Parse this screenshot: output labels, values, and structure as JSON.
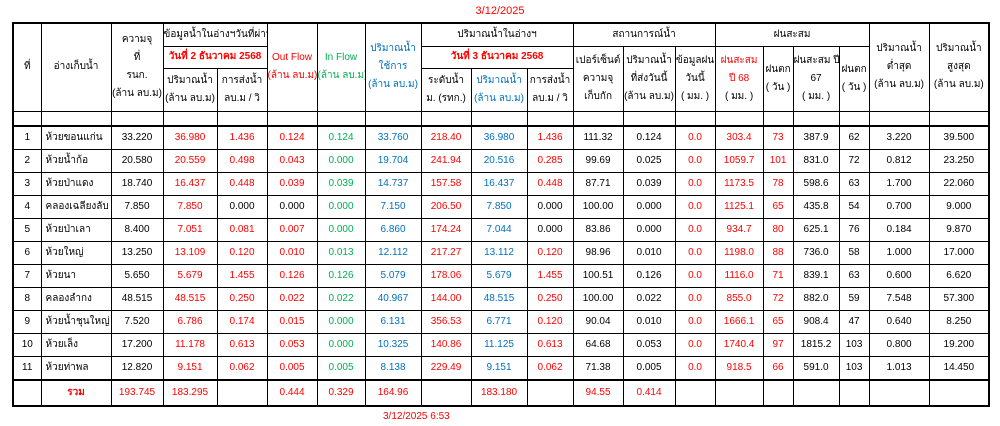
{
  "title_date": "3/12/2025",
  "footer_timestamp": "3/12/2025 6:53",
  "colors": {
    "red": "#FF0000",
    "green": "#00B050",
    "blue": "#0070C0",
    "black": "#000000"
  },
  "header": {
    "no": "ที่",
    "reservoir": "อ่างเก็บน้ำ",
    "capacity_lines": [
      "ความจุ",
      "ที่",
      "รนก.",
      "(ล้าน ลบ.ม)"
    ],
    "prev_day_group": "ข้อมูลน้ำในอ่างฯวันที่ผ่านมา",
    "prev_day_date": "วันที่ 2 ธันวาคม 2568",
    "volume_lines": [
      "ปริมาณน้ำ",
      "(ล้าน ลบ.ม)"
    ],
    "send_lines": [
      "การส่งน้ำ",
      "ลบ.ม / วิ"
    ],
    "out_flow_lines": [
      "Out Flow",
      "(ล้าน ลบ.ม)"
    ],
    "in_flow_lines": [
      "In Flow",
      "(ล้าน ลบ.ม)"
    ],
    "usable_lines": [
      "ปริมาณน้ำ",
      "ใช้การ",
      "(ล้าน ลบ.ม)"
    ],
    "today_group": "ปริมาณน้ำในอ่างฯ",
    "today_date": "วันที่ 3 ธันวาคม 2568",
    "level_lines": [
      "ระดับน้ำ",
      "ม. (รทก.)"
    ],
    "situation_group": "สถานการณ์น้ำ",
    "percent_lines": [
      "เปอร์เซ็นต์",
      "ความจุ",
      "เก็บกัก"
    ],
    "sent_today_lines": [
      "ปริมาณน้ำ",
      "ที่ส่งวันนี้",
      "(ล้าน ลบ.ม)"
    ],
    "rain_today_lines": [
      "ข้อมูลฝน",
      "วันนี้",
      "( มม. )"
    ],
    "rain_group": "ฝนสะสม",
    "rain68_lines": [
      "ฝนสะสม",
      "ปี 68"
    ],
    "rain68_unit": "( มม. )",
    "raindays_lines": [
      "ฝนตก",
      "( วัน )"
    ],
    "rain67_lines": [
      "ฝนสะสม ปี",
      "67",
      "( มม. )"
    ],
    "min_lines": [
      "ปริมาณน้ำ",
      "ต่ำสุด",
      "(ล้าน ลบ.ม)"
    ],
    "max_lines": [
      "ปริมาณน้ำ",
      "สูงสุด",
      "(ล้าน ลบ.ม)"
    ]
  },
  "table": {
    "columns": [
      {
        "id": "capacity",
        "color": "black"
      },
      {
        "id": "d2_volume",
        "color": "red"
      },
      {
        "id": "d2_send",
        "color": "red",
        "zero_black": true
      },
      {
        "id": "out_flow",
        "color": "red",
        "zero_black": true
      },
      {
        "id": "in_flow",
        "color": "green"
      },
      {
        "id": "usable",
        "color": "blue"
      },
      {
        "id": "level",
        "color": "red"
      },
      {
        "id": "d3_volume",
        "color": "blue"
      },
      {
        "id": "d3_send",
        "color": "red",
        "zero_black": true
      },
      {
        "id": "percent",
        "color": "black"
      },
      {
        "id": "sent_today",
        "color": "black"
      },
      {
        "id": "rain_today",
        "color": "red"
      },
      {
        "id": "rain68",
        "color": "red"
      },
      {
        "id": "raindays68",
        "color": "red"
      },
      {
        "id": "rain67",
        "color": "black"
      },
      {
        "id": "raindays67",
        "color": "black"
      },
      {
        "id": "min",
        "color": "black"
      },
      {
        "id": "max",
        "color": "black"
      }
    ],
    "rows": [
      {
        "no": "1",
        "name": "ห้วยขอนแก่น",
        "values": [
          "33.220",
          "36.980",
          "1.436",
          "0.124",
          "0.124",
          "33.760",
          "218.40",
          "36.980",
          "1.436",
          "111.32",
          "0.124",
          "0.0",
          "303.4",
          "73",
          "387.9",
          "62",
          "3.220",
          "39.500"
        ]
      },
      {
        "no": "2",
        "name": "ห้วยน้ำก้อ",
        "values": [
          "20.580",
          "20.559",
          "0.498",
          "0.043",
          "0.000",
          "19.704",
          "241.94",
          "20.516",
          "0.285",
          "99.69",
          "0.025",
          "0.0",
          "1059.7",
          "101",
          "831.0",
          "72",
          "0.812",
          "23.250"
        ]
      },
      {
        "no": "3",
        "name": "ห้วยป่าแดง",
        "values": [
          "18.740",
          "16.437",
          "0.448",
          "0.039",
          "0.039",
          "14.737",
          "157.58",
          "16.437",
          "0.448",
          "87.71",
          "0.039",
          "0.0",
          "1173.5",
          "78",
          "598.6",
          "63",
          "1.700",
          "22.060"
        ]
      },
      {
        "no": "4",
        "name": "คลองเฉลียงลับ",
        "values": [
          "7.850",
          "7.850",
          "0.000",
          "0.000",
          "0.000",
          "7.150",
          "206.50",
          "7.850",
          "0.000",
          "100.00",
          "0.000",
          "0.0",
          "1125.1",
          "65",
          "435.8",
          "54",
          "0.700",
          "9.000"
        ]
      },
      {
        "no": "5",
        "name": "ห้วยป่าเลา",
        "values": [
          "8.400",
          "7.051",
          "0.081",
          "0.007",
          "0.000",
          "6.860",
          "174.24",
          "7.044",
          "0.000",
          "83.86",
          "0.000",
          "0.0",
          "934.7",
          "80",
          "625.1",
          "76",
          "0.184",
          "9.870"
        ]
      },
      {
        "no": "6",
        "name": "ห้วยใหญ่",
        "values": [
          "13.250",
          "13.109",
          "0.120",
          "0.010",
          "0.013",
          "12.112",
          "217.27",
          "13.112",
          "0.120",
          "98.96",
          "0.010",
          "0.0",
          "1198.0",
          "88",
          "736.0",
          "58",
          "1.000",
          "17.000"
        ]
      },
      {
        "no": "7",
        "name": "ห้วยนา",
        "values": [
          "5.650",
          "5.679",
          "1.455",
          "0.126",
          "0.126",
          "5.079",
          "178.06",
          "5.679",
          "1.455",
          "100.51",
          "0.126",
          "0.0",
          "1116.0",
          "71",
          "839.1",
          "63",
          "0.600",
          "6.620"
        ]
      },
      {
        "no": "8",
        "name": "คลองลำกง",
        "values": [
          "48.515",
          "48.515",
          "0.250",
          "0.022",
          "0.022",
          "40.967",
          "144.00",
          "48.515",
          "0.250",
          "100.00",
          "0.022",
          "0.0",
          "855.0",
          "72",
          "882.0",
          "59",
          "7.548",
          "57.300"
        ]
      },
      {
        "no": "9",
        "name": "ห้วยน้ำชุนใหญ่",
        "values": [
          "7.520",
          "6.786",
          "0.174",
          "0.015",
          "0.000",
          "6.131",
          "356.53",
          "6.771",
          "0.120",
          "90.04",
          "0.010",
          "0.0",
          "1666.1",
          "65",
          "908.4",
          "47",
          "0.640",
          "8.250"
        ]
      },
      {
        "no": "10",
        "name": "ห้วยเล็ง",
        "values": [
          "17.200",
          "11.178",
          "0.613",
          "0.053",
          "0.000",
          "10.325",
          "140.86",
          "11.125",
          "0.613",
          "64.68",
          "0.053",
          "0.0",
          "1740.4",
          "97",
          "1815.2",
          "103",
          "0.800",
          "19.200"
        ]
      },
      {
        "no": "11",
        "name": "ห้วยท่าพล",
        "values": [
          "12.820",
          "9.151",
          "0.062",
          "0.005",
          "0.005",
          "8.138",
          "229.49",
          "9.151",
          "0.062",
          "71.38",
          "0.005",
          "0.0",
          "918.5",
          "66",
          "591.0",
          "103",
          "1.013",
          "14.450"
        ]
      }
    ],
    "total": {
      "label": "รวม",
      "values": [
        "193.745",
        "183.295",
        "",
        "0.444",
        "0.329",
        "164.96",
        "",
        "183.180",
        "",
        "94.55",
        "0.414",
        "",
        "",
        "",
        "",
        "",
        "",
        ""
      ]
    }
  }
}
